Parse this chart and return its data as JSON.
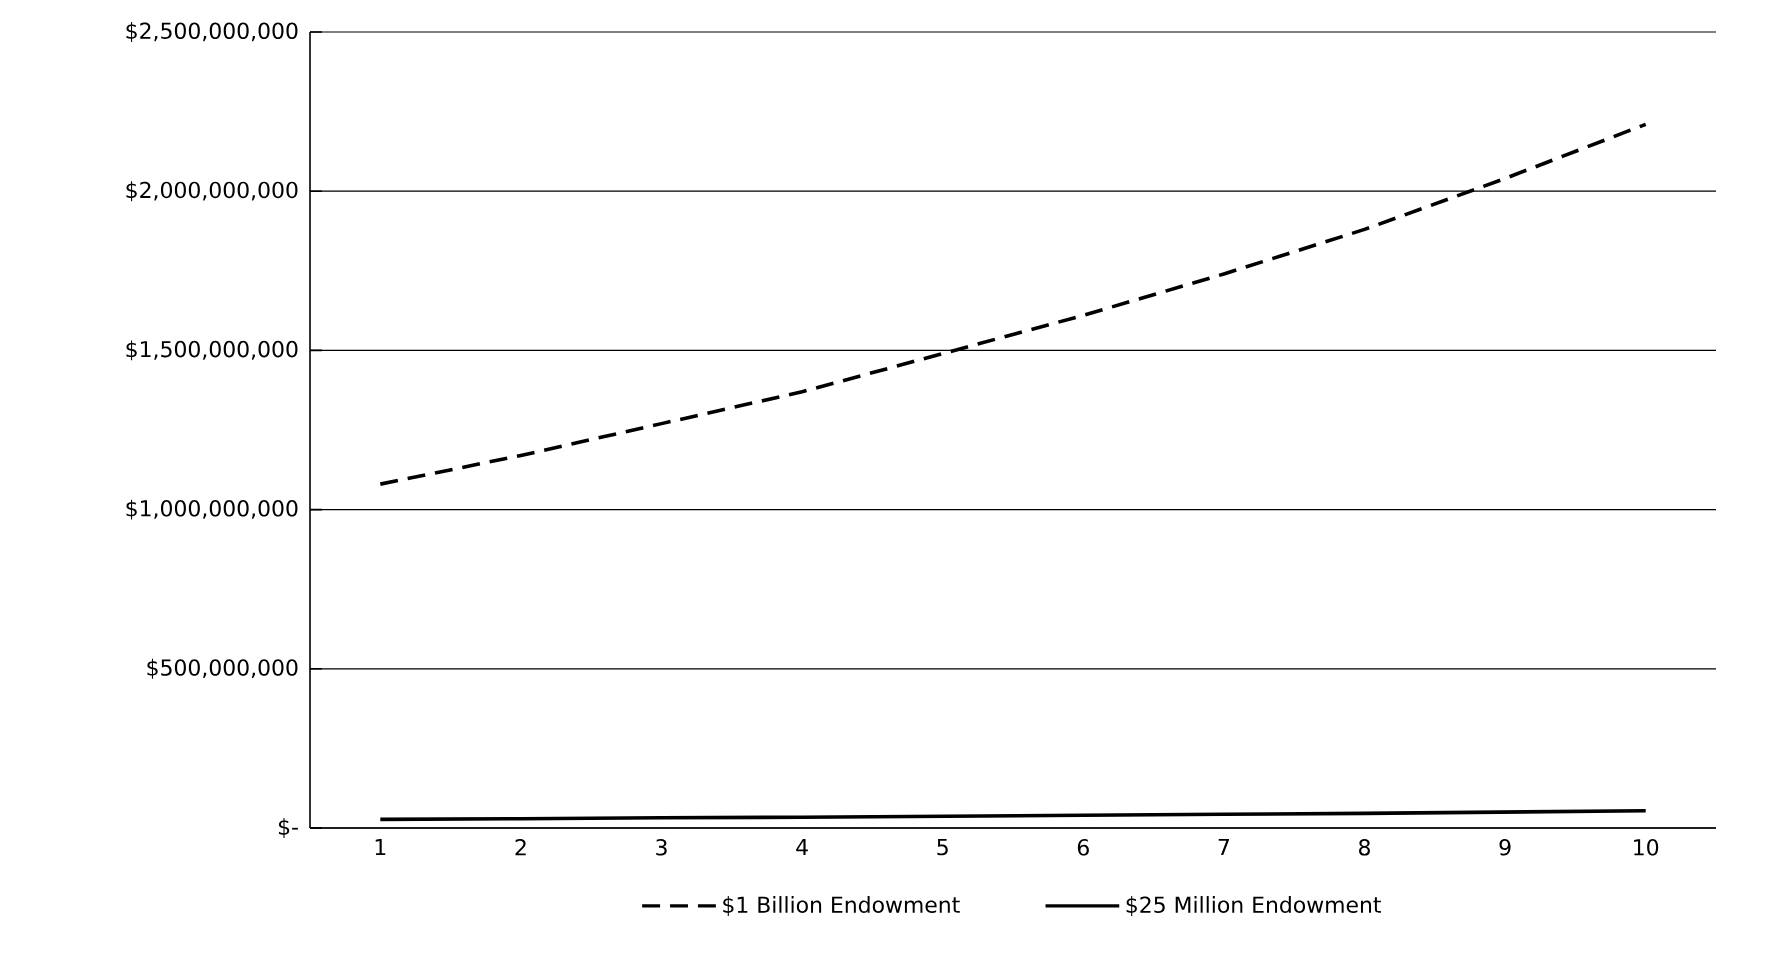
{
  "chart_data": {
    "type": "line",
    "categories": [
      "1",
      "2",
      "3",
      "4",
      "5",
      "6",
      "7",
      "8",
      "9",
      "10"
    ],
    "series": [
      {
        "name": "$1 Billion Endowment",
        "color": "#000000",
        "line_style": "dashed",
        "values": [
          1080000000,
          1170000000,
          1270000000,
          1370000000,
          1490000000,
          1610000000,
          1740000000,
          1880000000,
          2040000000,
          2210000000
        ]
      },
      {
        "name": "$25 Million Endowment",
        "color": "#000000",
        "line_style": "solid",
        "values": [
          27000000,
          29000000,
          32000000,
          34000000,
          37000000,
          40000000,
          43000000,
          46000000,
          50000000,
          54000000
        ]
      }
    ],
    "ylim": [
      0,
      2500000000
    ],
    "yticks": [
      {
        "value": 0,
        "label": "$-"
      },
      {
        "value": 500000000,
        "label": "$500,000,000"
      },
      {
        "value": 1000000000,
        "label": "$1,000,000,000"
      },
      {
        "value": 1500000000,
        "label": "$1,500,000,000"
      },
      {
        "value": 2000000000,
        "label": "$2,000,000,000"
      },
      {
        "value": 2500000000,
        "label": "$2,500,000,000"
      }
    ],
    "grid": "y",
    "legend": "bottom",
    "marker": "none"
  }
}
